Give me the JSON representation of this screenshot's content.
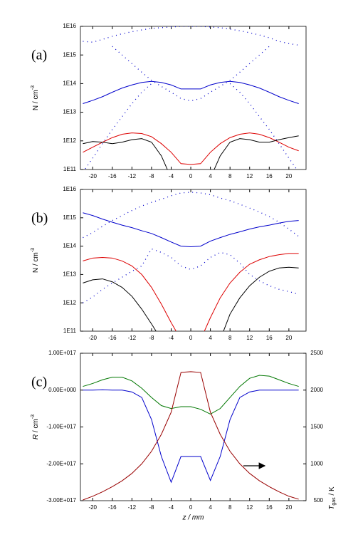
{
  "chart_data": [
    {
      "type": "line",
      "panel_label": "(a)",
      "ylabel": "N / cm",
      "ylabel_sup": "-3",
      "ylog": true,
      "x": [
        -22,
        -20,
        -18,
        -16,
        -14,
        -12,
        -10,
        -8,
        -6,
        -4,
        -2,
        0,
        2,
        4,
        6,
        8,
        10,
        12,
        14,
        16,
        18,
        20,
        22
      ],
      "xlim": [
        -22.5,
        23.5
      ],
      "xticks": [
        -20,
        -16,
        -12,
        -8,
        -4,
        0,
        4,
        8,
        12,
        16,
        20
      ],
      "ylim": [
        100000000000.0,
        1e+16
      ],
      "yticks": [
        {
          "value": 100000000000.0,
          "label": "1E11"
        },
        {
          "value": 1000000000000.0,
          "label": "1E12"
        },
        {
          "value": 10000000000000.0,
          "label": "1E13"
        },
        {
          "value": 100000000000000.0,
          "label": "1E14"
        },
        {
          "value": 1000000000000000.0,
          "label": "1E15"
        },
        {
          "value": 1e+16,
          "label": "1E16"
        }
      ],
      "series": [
        {
          "color": "#0000cc",
          "style": "dotted",
          "values": [
            3000000000000000.0,
            2800000000000000.0,
            3500000000000000.0,
            4500000000000000.0,
            5500000000000000.0,
            6500000000000000.0,
            7500000000000000.0,
            8500000000000000.0,
            9000000000000000.0,
            9500000000000000.0,
            1e+16,
            1e+16,
            1e+16,
            9500000000000000.0,
            9000000000000000.0,
            8000000000000000.0,
            7000000000000000.0,
            6000000000000000.0,
            5000000000000000.0,
            4000000000000000.0,
            3000000000000000.0,
            2500000000000000.0,
            2200000000000000.0
          ]
        },
        {
          "color": "#0000cc",
          "style": "dotted",
          "values": [
            null,
            null,
            null,
            2000000000000000.0,
            1000000000000000.0,
            500000000000000.0,
            250000000000000.0,
            130000000000000.0,
            80000000000000.0,
            50000000000000.0,
            30000000000000.0,
            25000000000000.0,
            30000000000000.0,
            50000000000000.0,
            80000000000000.0,
            130000000000000.0,
            250000000000000.0,
            500000000000000.0,
            1000000000000000.0,
            2000000000000000.0,
            null,
            null,
            null
          ]
        },
        {
          "color": "#0000cc",
          "style": "dotted",
          "values": [
            80000000000.0,
            250000000000.0,
            800000000000.0,
            2500000000000.0,
            7000000000000.0,
            20000000000000.0,
            50000000000000.0,
            100000000000000.0,
            null,
            null,
            null,
            null,
            null,
            null,
            null,
            100000000000000.0,
            50000000000000.0,
            20000000000000.0,
            7000000000000.0,
            2500000000000.0,
            800000000000.0,
            250000000000.0,
            80000000000.0
          ]
        },
        {
          "color": "#0000cc",
          "style": "solid",
          "values": [
            20000000000000.0,
            26000000000000.0,
            35000000000000.0,
            50000000000000.0,
            70000000000000.0,
            90000000000000.0,
            110000000000000.0,
            120000000000000.0,
            110000000000000.0,
            90000000000000.0,
            65000000000000.0,
            65000000000000.0,
            65000000000000.0,
            90000000000000.0,
            110000000000000.0,
            120000000000000.0,
            110000000000000.0,
            90000000000000.0,
            70000000000000.0,
            50000000000000.0,
            35000000000000.0,
            26000000000000.0,
            20000000000000.0
          ]
        },
        {
          "color": "#dd0000",
          "style": "solid",
          "values": [
            400000000000.0,
            600000000000.0,
            900000000000.0,
            1300000000000.0,
            1700000000000.0,
            1900000000000.0,
            1800000000000.0,
            1400000000000.0,
            800000000000.0,
            400000000000.0,
            160000000000.0,
            150000000000.0,
            160000000000.0,
            400000000000.0,
            800000000000.0,
            1300000000000.0,
            1700000000000.0,
            1900000000000.0,
            1700000000000.0,
            1300000000000.0,
            900000000000.0,
            600000000000.0,
            450000000000.0
          ]
        },
        {
          "color": "#000000",
          "style": "solid",
          "values": [
            800000000000.0,
            950000000000.0,
            900000000000.0,
            800000000000.0,
            900000000000.0,
            1100000000000.0,
            1200000000000.0,
            900000000000.0,
            300000000000.0,
            50000000000.0,
            null,
            null,
            null,
            50000000000.0,
            300000000000.0,
            900000000000.0,
            1200000000000.0,
            1100000000000.0,
            900000000000.0,
            900000000000.0,
            1100000000000.0,
            1300000000000.0,
            1500000000000.0
          ]
        }
      ]
    },
    {
      "type": "line",
      "panel_label": "(b)",
      "ylabel": "N / cm",
      "ylabel_sup": "-3",
      "ylog": true,
      "x": [
        -22,
        -20,
        -18,
        -16,
        -14,
        -12,
        -10,
        -8,
        -6,
        -4,
        -2,
        0,
        2,
        4,
        6,
        8,
        10,
        12,
        14,
        16,
        18,
        20,
        22
      ],
      "xlim": [
        -22.5,
        23.5
      ],
      "xticks": [
        -20,
        -16,
        -12,
        -8,
        -4,
        0,
        4,
        8,
        12,
        16,
        20
      ],
      "ylim": [
        100000000000.0,
        1e+16
      ],
      "yticks": [
        {
          "value": 100000000000.0,
          "label": "1E11"
        },
        {
          "value": 1000000000000.0,
          "label": "1E12"
        },
        {
          "value": 10000000000000.0,
          "label": "1E13"
        },
        {
          "value": 100000000000000.0,
          "label": "1E14"
        },
        {
          "value": 1000000000000000.0,
          "label": "1E15"
        },
        {
          "value": 1e+16,
          "label": "1E16"
        }
      ],
      "series": [
        {
          "color": "#0000cc",
          "style": "dotted",
          "values": [
            200000000000000.0,
            300000000000000.0,
            500000000000000.0,
            800000000000000.0,
            1200000000000000.0,
            1800000000000000.0,
            2600000000000000.0,
            3500000000000000.0,
            4500000000000000.0,
            6000000000000000.0,
            7500000000000000.0,
            8000000000000000.0,
            7500000000000000.0,
            6500000000000000.0,
            5000000000000000.0,
            4000000000000000.0,
            3000000000000000.0,
            2200000000000000.0,
            1600000000000000.0,
            1100000000000000.0,
            700000000000000.0,
            400000000000000.0,
            220000000000000.0
          ]
        },
        {
          "color": "#0000cc",
          "style": "dotted",
          "values": [
            1000000000000.0,
            1600000000000.0,
            3000000000000.0,
            5000000000000.0,
            8000000000000.0,
            13000000000000.0,
            20000000000000.0,
            80000000000000.0,
            60000000000000.0,
            40000000000000.0,
            20000000000000.0,
            15000000000000.0,
            20000000000000.0,
            40000000000000.0,
            60000000000000.0,
            50000000000000.0,
            25000000000000.0,
            10000000000000.0,
            6000000000000.0,
            4000000000000.0,
            3000000000000.0,
            2500000000000.0,
            2000000000000.0
          ]
        },
        {
          "color": "#0000cc",
          "style": "solid",
          "values": [
            1500000000000000.0,
            1200000000000000.0,
            900000000000000.0,
            700000000000000.0,
            550000000000000.0,
            450000000000000.0,
            350000000000000.0,
            280000000000000.0,
            200000000000000.0,
            140000000000000.0,
            100000000000000.0,
            95000000000000.0,
            100000000000000.0,
            150000000000000.0,
            200000000000000.0,
            260000000000000.0,
            320000000000000.0,
            400000000000000.0,
            480000000000000.0,
            550000000000000.0,
            650000000000000.0,
            750000000000000.0,
            800000000000000.0
          ]
        },
        {
          "color": "#dd0000",
          "style": "solid",
          "values": [
            30000000000000.0,
            38000000000000.0,
            40000000000000.0,
            38000000000000.0,
            30000000000000.0,
            20000000000000.0,
            10000000000000.0,
            3500000000000.0,
            900000000000.0,
            200000000000.0,
            50000000000.0,
            null,
            50000000000.0,
            300000000000.0,
            1500000000000.0,
            5000000000000.0,
            12000000000000.0,
            23000000000000.0,
            33000000000000.0,
            43000000000000.0,
            50000000000000.0,
            55000000000000.0,
            55000000000000.0
          ]
        },
        {
          "color": "#000000",
          "style": "solid",
          "values": [
            5000000000000.0,
            6500000000000.0,
            7000000000000.0,
            5500000000000.0,
            3500000000000.0,
            1700000000000.0,
            600000000000.0,
            180000000000.0,
            50000000000.0,
            null,
            null,
            null,
            null,
            null,
            50000000000.0,
            400000000000.0,
            1500000000000.0,
            4000000000000.0,
            8000000000000.0,
            13000000000000.0,
            17000000000000.0,
            18000000000000.0,
            17000000000000.0
          ]
        }
      ]
    },
    {
      "type": "line",
      "panel_label": "(c)",
      "ylabel": "R",
      "ylabel_unit": " / cm",
      "ylabel_sup": "-3",
      "y2label": "T",
      "y2label_sub": "gas",
      "y2label_unit": " / K",
      "xlabel": "z / mm",
      "x": [
        -22,
        -20,
        -18,
        -16,
        -14,
        -12,
        -10,
        -8,
        -6,
        -4,
        -2,
        0,
        2,
        4,
        6,
        8,
        10,
        12,
        14,
        16,
        18,
        20,
        22
      ],
      "xlim": [
        -22.5,
        23.5
      ],
      "xticks": [
        -20,
        -16,
        -12,
        -8,
        -4,
        0,
        4,
        8,
        12,
        16,
        20
      ],
      "ylim": [
        -3e+17,
        1e+17
      ],
      "yticks": [
        {
          "value": -3e+17,
          "label": "-3.00E+017"
        },
        {
          "value": -2e+17,
          "label": "-2.00E+017"
        },
        {
          "value": -1e+17,
          "label": "-1.00E+017"
        },
        {
          "value": 0,
          "label": "0.00E+000"
        },
        {
          "value": 1e+17,
          "label": "1.00E+017"
        }
      ],
      "y2lim": [
        500,
        2500
      ],
      "y2ticks": [
        500,
        1000,
        1500,
        2000,
        2500
      ],
      "series": [
        {
          "color": "#007700",
          "style": "solid",
          "values": [
            1e+16,
            1.8e+16,
            2.8e+16,
            3.5e+16,
            3.5e+16,
            2.5e+16,
            5000000000000000.0,
            -2e+16,
            -4.2e+16,
            -5e+16,
            -4.5e+16,
            -4.5e+16,
            -5.2e+16,
            -6.5e+16,
            -5e+16,
            -2e+16,
            1e+16,
            3.2e+16,
            4e+16,
            3.8e+16,
            2.8e+16,
            1.8e+16,
            1e+16
          ]
        },
        {
          "color": "#0000cc",
          "style": "solid",
          "values": [
            0,
            0,
            1000000000000000.0,
            0,
            0,
            -5000000000000000.0,
            -2e+16,
            -8e+16,
            -1.8e+17,
            -2.5e+17,
            -1.8e+17,
            -1.8e+17,
            -1.8e+17,
            -2.45e+17,
            -1.8e+17,
            -8e+16,
            -2e+16,
            -5000000000000000.0,
            0,
            0,
            0,
            0,
            0
          ]
        },
        {
          "color": "#990000",
          "style": "solid",
          "axis": "y2",
          "values": [
            510,
            560,
            620,
            690,
            770,
            870,
            1000,
            1170,
            1400,
            1700,
            2240,
            2250,
            2240,
            1700,
            1400,
            1170,
            1000,
            870,
            770,
            690,
            620,
            560,
            520
          ]
        }
      ]
    }
  ]
}
